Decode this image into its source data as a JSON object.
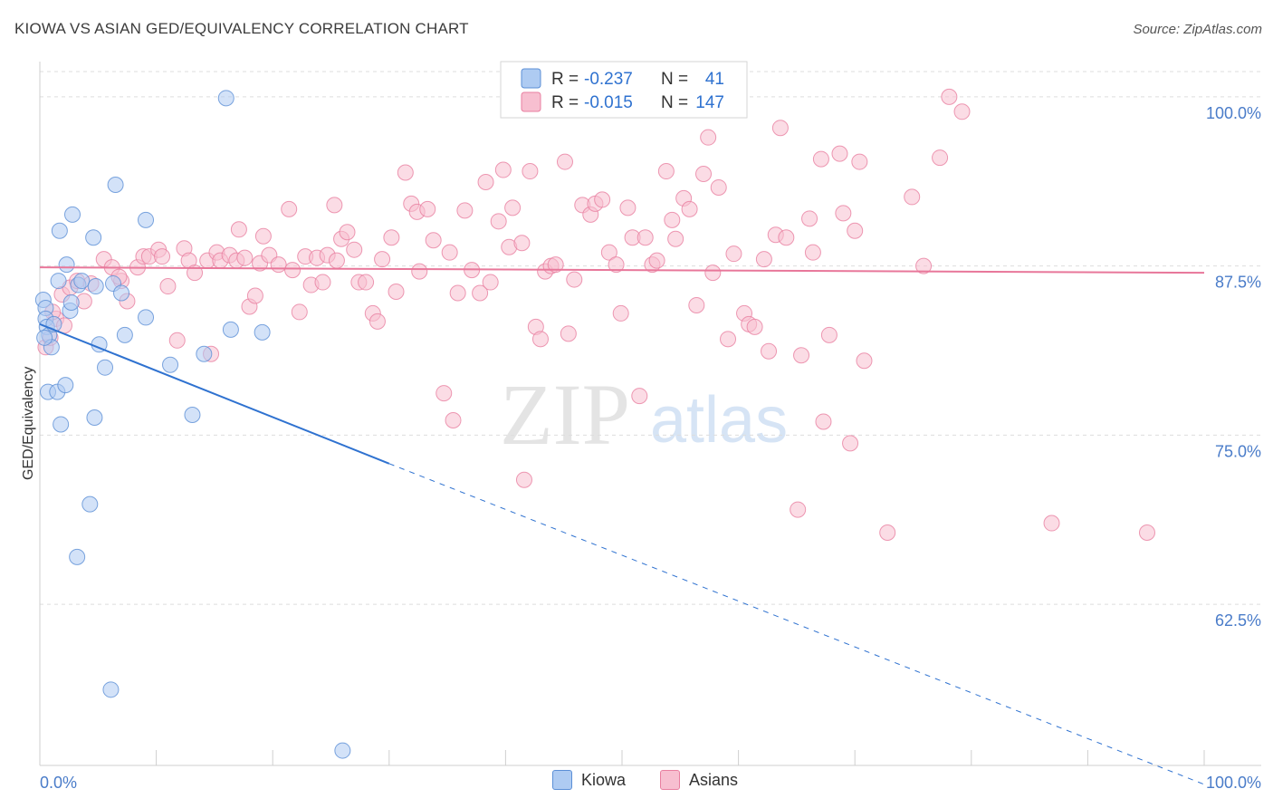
{
  "header": {
    "title": "KIOWA VS ASIAN GED/EQUIVALENCY CORRELATION CHART",
    "source": "Source: ZipAtlas.com"
  },
  "watermark": {
    "zip": "ZIP",
    "atlas": "atlas"
  },
  "colors": {
    "kiowa_fill": "#aecbf2",
    "kiowa_stroke": "#5b8fd6",
    "kiowa_line": "#2f72d0",
    "asian_fill": "#f7bfd0",
    "asian_stroke": "#e87fa0",
    "asian_line": "#e8779a",
    "tick_label": "#4a7cc9",
    "grid": "#dddddd"
  },
  "legend": {
    "rows": [
      {
        "r_label": "R = ",
        "r_value": "-0.237",
        "n_label": "N = ",
        "n_value": "41"
      },
      {
        "r_label": "R = ",
        "r_value": "-0.015",
        "n_label": "N = ",
        "n_value": "147"
      }
    ]
  },
  "chart_data": {
    "type": "scatter",
    "title": "KIOWA VS ASIAN GED/EQUIVALENCY CORRELATION CHART",
    "xlabel": "",
    "ylabel": "GED/Equivalency",
    "xlim": [
      0,
      100
    ],
    "ylim": [
      50.6,
      102.6
    ],
    "x_tick_labels": [
      "0.0%",
      "100.0%"
    ],
    "y_ticks": [
      62.5,
      75.0,
      87.5,
      100.0
    ],
    "y_tick_labels": [
      "62.5%",
      "75.0%",
      "87.5%",
      "100.0%"
    ],
    "grid": "horizontal dashed",
    "legend_position": "top-center",
    "series": [
      {
        "name": "Kiowa",
        "r": -0.237,
        "n": 41,
        "trend": {
          "x0": 0,
          "y0": 83.2,
          "x1": 30,
          "y1": 72.9,
          "dashed_to_x": 100,
          "dashed_to_y": 49.2
        },
        "points": [
          [
            0.3,
            85.0
          ],
          [
            0.5,
            84.4
          ],
          [
            0.5,
            83.6
          ],
          [
            0.6,
            83.0
          ],
          [
            0.8,
            82.4
          ],
          [
            1.0,
            81.5
          ],
          [
            0.7,
            78.2
          ],
          [
            1.5,
            78.2
          ],
          [
            1.6,
            86.4
          ],
          [
            1.8,
            75.8
          ],
          [
            2.2,
            78.7
          ],
          [
            2.6,
            84.2
          ],
          [
            2.7,
            84.8
          ],
          [
            1.7,
            90.1
          ],
          [
            2.3,
            87.6
          ],
          [
            2.8,
            91.3
          ],
          [
            3.3,
            86.1
          ],
          [
            3.6,
            86.4
          ],
          [
            4.6,
            89.6
          ],
          [
            4.8,
            86.0
          ],
          [
            5.1,
            81.7
          ],
          [
            5.6,
            80.0
          ],
          [
            6.3,
            86.2
          ],
          [
            4.7,
            76.3
          ],
          [
            4.3,
            69.9
          ],
          [
            3.2,
            66.0
          ],
          [
            6.1,
            56.2
          ],
          [
            6.5,
            93.5
          ],
          [
            7.0,
            85.5
          ],
          [
            7.3,
            82.4
          ],
          [
            9.1,
            90.9
          ],
          [
            9.1,
            83.7
          ],
          [
            11.2,
            80.2
          ],
          [
            13.1,
            76.5
          ],
          [
            14.1,
            81.0
          ],
          [
            16.0,
            99.9
          ],
          [
            16.4,
            82.8
          ],
          [
            19.1,
            82.6
          ],
          [
            26.0,
            51.7
          ],
          [
            1.2,
            83.2
          ],
          [
            0.4,
            82.2
          ]
        ]
      },
      {
        "name": "Asians",
        "r": -0.015,
        "n": 147,
        "trend": {
          "x0": 0,
          "y0": 87.4,
          "x1": 100,
          "y1": 87.0
        },
        "points": [
          [
            0.5,
            81.5
          ],
          [
            0.9,
            82.2
          ],
          [
            1.4,
            83.6
          ],
          [
            1.9,
            85.4
          ],
          [
            2.6,
            85.9
          ],
          [
            3.2,
            86.4
          ],
          [
            4.4,
            86.2
          ],
          [
            5.5,
            88.0
          ],
          [
            6.2,
            87.4
          ],
          [
            7.0,
            86.4
          ],
          [
            7.5,
            84.9
          ],
          [
            8.4,
            87.4
          ],
          [
            8.9,
            88.2
          ],
          [
            9.4,
            88.2
          ],
          [
            10.2,
            88.7
          ],
          [
            10.5,
            88.2
          ],
          [
            11.0,
            86.0
          ],
          [
            11.8,
            82.0
          ],
          [
            12.4,
            88.8
          ],
          [
            12.8,
            87.9
          ],
          [
            13.3,
            87.0
          ],
          [
            14.4,
            87.9
          ],
          [
            14.7,
            81.0
          ],
          [
            15.2,
            88.5
          ],
          [
            15.5,
            87.9
          ],
          [
            16.3,
            88.3
          ],
          [
            16.9,
            87.9
          ],
          [
            17.1,
            90.2
          ],
          [
            17.6,
            88.1
          ],
          [
            18.0,
            84.5
          ],
          [
            18.5,
            85.3
          ],
          [
            18.9,
            87.7
          ],
          [
            19.2,
            89.7
          ],
          [
            19.7,
            88.3
          ],
          [
            20.5,
            87.6
          ],
          [
            21.4,
            91.7
          ],
          [
            21.7,
            87.2
          ],
          [
            22.3,
            84.1
          ],
          [
            22.8,
            88.2
          ],
          [
            23.3,
            86.1
          ],
          [
            23.8,
            88.1
          ],
          [
            24.3,
            86.3
          ],
          [
            24.7,
            88.3
          ],
          [
            25.3,
            92.0
          ],
          [
            25.5,
            87.9
          ],
          [
            25.9,
            89.5
          ],
          [
            26.4,
            90.0
          ],
          [
            27.0,
            88.7
          ],
          [
            27.4,
            86.3
          ],
          [
            28.0,
            86.3
          ],
          [
            28.6,
            84.0
          ],
          [
            29.0,
            83.4
          ],
          [
            29.4,
            88.0
          ],
          [
            30.2,
            89.6
          ],
          [
            30.6,
            85.6
          ],
          [
            31.4,
            94.4
          ],
          [
            31.9,
            92.1
          ],
          [
            32.4,
            91.5
          ],
          [
            32.6,
            87.1
          ],
          [
            33.3,
            91.7
          ],
          [
            33.8,
            89.4
          ],
          [
            34.7,
            78.1
          ],
          [
            35.2,
            88.5
          ],
          [
            35.5,
            76.1
          ],
          [
            35.9,
            85.5
          ],
          [
            36.5,
            91.6
          ],
          [
            37.1,
            87.2
          ],
          [
            37.8,
            85.5
          ],
          [
            38.3,
            93.7
          ],
          [
            38.7,
            86.3
          ],
          [
            39.4,
            90.8
          ],
          [
            39.8,
            94.6
          ],
          [
            40.3,
            88.9
          ],
          [
            40.6,
            91.8
          ],
          [
            41.4,
            89.2
          ],
          [
            41.6,
            71.7
          ],
          [
            42.1,
            94.5
          ],
          [
            42.6,
            83.0
          ],
          [
            43.0,
            82.1
          ],
          [
            43.4,
            87.1
          ],
          [
            43.9,
            87.5
          ],
          [
            44.3,
            87.6
          ],
          [
            45.1,
            95.2
          ],
          [
            45.4,
            82.5
          ],
          [
            45.9,
            86.5
          ],
          [
            46.6,
            92.0
          ],
          [
            47.3,
            91.3
          ],
          [
            47.7,
            92.1
          ],
          [
            48.3,
            92.4
          ],
          [
            48.9,
            88.5
          ],
          [
            49.5,
            87.6
          ],
          [
            49.9,
            84.0
          ],
          [
            50.5,
            91.8
          ],
          [
            50.9,
            89.6
          ],
          [
            51.5,
            77.9
          ],
          [
            52.0,
            89.6
          ],
          [
            52.6,
            87.6
          ],
          [
            53.0,
            87.9
          ],
          [
            53.8,
            94.5
          ],
          [
            54.3,
            90.9
          ],
          [
            54.6,
            89.5
          ],
          [
            55.3,
            92.5
          ],
          [
            55.8,
            91.7
          ],
          [
            56.4,
            84.6
          ],
          [
            57.0,
            94.3
          ],
          [
            57.4,
            97.0
          ],
          [
            57.8,
            87.0
          ],
          [
            58.3,
            93.3
          ],
          [
            59.1,
            82.1
          ],
          [
            59.6,
            88.4
          ],
          [
            60.5,
            84.0
          ],
          [
            60.9,
            83.2
          ],
          [
            61.4,
            83.0
          ],
          [
            62.2,
            88.0
          ],
          [
            62.6,
            81.2
          ],
          [
            63.2,
            89.8
          ],
          [
            63.6,
            97.7
          ],
          [
            64.1,
            89.6
          ],
          [
            65.1,
            69.5
          ],
          [
            65.4,
            80.9
          ],
          [
            66.1,
            91.0
          ],
          [
            66.4,
            88.5
          ],
          [
            67.1,
            95.4
          ],
          [
            67.3,
            76.0
          ],
          [
            67.8,
            82.4
          ],
          [
            68.7,
            95.8
          ],
          [
            69.0,
            91.4
          ],
          [
            69.6,
            74.4
          ],
          [
            70.0,
            90.1
          ],
          [
            70.4,
            95.2
          ],
          [
            70.8,
            80.5
          ],
          [
            72.8,
            67.8
          ],
          [
            74.9,
            92.6
          ],
          [
            75.9,
            87.5
          ],
          [
            77.3,
            95.5
          ],
          [
            78.1,
            100.0
          ],
          [
            79.2,
            98.9
          ],
          [
            86.9,
            68.5
          ],
          [
            95.1,
            67.8
          ],
          [
            3.8,
            84.9
          ],
          [
            2.1,
            83.1
          ],
          [
            1.1,
            84.1
          ],
          [
            6.8,
            86.7
          ]
        ]
      }
    ]
  },
  "legend_bottom": [
    {
      "label": "Kiowa"
    },
    {
      "label": "Asians"
    }
  ]
}
